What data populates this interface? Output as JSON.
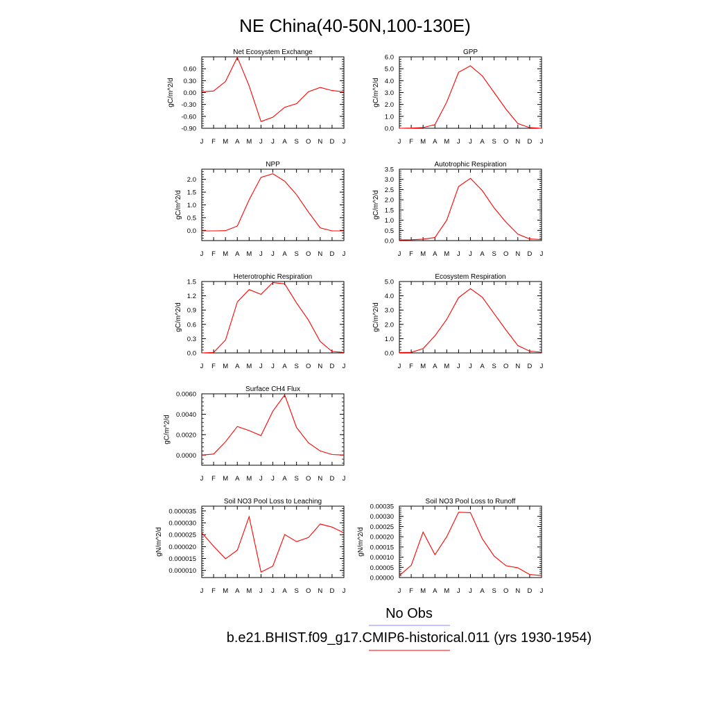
{
  "title": "NE China(40-50N,100-130E)",
  "months": [
    "J",
    "F",
    "M",
    "A",
    "M",
    "J",
    "J",
    "A",
    "S",
    "O",
    "N",
    "D",
    "J"
  ],
  "legend": {
    "entries": [
      {
        "name": "No Obs",
        "color": "#8a8aff"
      },
      {
        "name": "b.e21.BHIST.f09_g17.CMIP6-historical.011 (yrs 1930-1954)",
        "color": "#ff0000"
      }
    ]
  },
  "colors": {
    "series": "#ff0000"
  },
  "chart_data": [
    {
      "type": "line",
      "title": "Net Ecosystem Exchange",
      "ylabel": "gC/m^2/d",
      "ylim": [
        -0.9,
        0.9
      ],
      "yticks": [
        "-0.90",
        "-0.60",
        "-0.30",
        "0.00",
        "0.30",
        "0.60"
      ],
      "yticks_values": [
        -0.9,
        -0.6,
        -0.3,
        0.0,
        0.3,
        0.6
      ],
      "values": [
        0.02,
        0.04,
        0.28,
        0.89,
        0.17,
        -0.73,
        -0.62,
        -0.37,
        -0.28,
        0.02,
        0.13,
        0.05,
        0.02
      ]
    },
    {
      "type": "line",
      "title": "GPP",
      "ylabel": "gC/m^2/d",
      "ylim": [
        0,
        6
      ],
      "yticks": [
        "0.0",
        "1.0",
        "2.0",
        "3.0",
        "4.0",
        "5.0",
        "6.0"
      ],
      "yticks_values": [
        0,
        1,
        2,
        3,
        4,
        5,
        6
      ],
      "values": [
        0.0,
        0.02,
        0.06,
        0.3,
        2.2,
        4.7,
        5.25,
        4.4,
        3.0,
        1.6,
        0.4,
        0.05,
        0.0
      ]
    },
    {
      "type": "line",
      "title": "NPP",
      "ylabel": "gC/m^2/d",
      "ylim": [
        -0.4,
        2.4
      ],
      "yticks": [
        "0.0",
        "0.5",
        "1.0",
        "1.5",
        "2.0"
      ],
      "yticks_values": [
        0,
        0.5,
        1.0,
        1.5,
        2.0
      ],
      "values": [
        -0.02,
        -0.02,
        -0.01,
        0.17,
        1.2,
        2.08,
        2.22,
        1.93,
        1.4,
        0.72,
        0.1,
        -0.02,
        -0.02
      ]
    },
    {
      "type": "line",
      "title": "Autotrophic Respiration",
      "ylabel": "gC/m^2/d",
      "ylim": [
        0,
        3.5
      ],
      "yticks": [
        "0.0",
        "0.5",
        "1.0",
        "1.5",
        "2.0",
        "2.5",
        "3.0",
        "3.5"
      ],
      "yticks_values": [
        0,
        0.5,
        1.0,
        1.5,
        2.0,
        2.5,
        3.0,
        3.5
      ],
      "values": [
        0.03,
        0.04,
        0.07,
        0.15,
        1.0,
        2.65,
        3.05,
        2.45,
        1.6,
        0.9,
        0.32,
        0.08,
        0.05
      ]
    },
    {
      "type": "line",
      "title": "Heterotrophic Respiration",
      "ylabel": "gC/m^2/d",
      "ylim": [
        0,
        1.5
      ],
      "yticks": [
        "0.0",
        "0.3",
        "0.6",
        "0.9",
        "1.2",
        "1.5"
      ],
      "yticks_values": [
        0,
        0.3,
        0.6,
        0.9,
        1.2,
        1.5
      ],
      "values": [
        0.0,
        0.01,
        0.27,
        1.07,
        1.33,
        1.23,
        1.48,
        1.45,
        1.05,
        0.69,
        0.24,
        0.03,
        0.01
      ]
    },
    {
      "type": "line",
      "title": "Ecosystem Respiration",
      "ylabel": "gC/m^2/d",
      "ylim": [
        0,
        5
      ],
      "yticks": [
        "0.0",
        "1.0",
        "2.0",
        "3.0",
        "4.0",
        "5.0"
      ],
      "yticks_values": [
        0,
        1,
        2,
        3,
        4,
        5
      ],
      "values": [
        0.03,
        0.04,
        0.3,
        1.2,
        2.35,
        3.87,
        4.5,
        3.9,
        2.75,
        1.6,
        0.52,
        0.12,
        0.05
      ]
    },
    {
      "type": "line",
      "title": "Surface CH4 Flux",
      "ylabel": "gC/m^2/d",
      "ylim": [
        -0.001,
        0.006
      ],
      "yticks": [
        "0.0000",
        "0.0020",
        "0.0040",
        "0.0060"
      ],
      "yticks_values": [
        0,
        0.002,
        0.004,
        0.006
      ],
      "values": [
        0.0,
        0.0001,
        0.0013,
        0.0028,
        0.0024,
        0.0019,
        0.0043,
        0.0059,
        0.0027,
        0.0012,
        0.0004,
        5e-05,
        0.0
      ]
    },
    {
      "type": "line",
      "title": "Soil NO3 Pool Loss to Leaching",
      "ylabel": "gN/m^2/d",
      "ylim": [
        7e-06,
        3.7e-05
      ],
      "yticks": [
        "0.000010",
        "0.000015",
        "0.000020",
        "0.000025",
        "0.000030",
        "0.000035"
      ],
      "yticks_values": [
        1e-05,
        1.5e-05,
        2e-05,
        2.5e-05,
        3e-05,
        3.5e-05
      ],
      "values": [
        2.58e-05,
        2.02e-05,
        1.49e-05,
        1.85e-05,
        3.26e-05,
        9.3e-06,
        1.18e-05,
        2.51e-05,
        2.21e-05,
        2.38e-05,
        2.95e-05,
        2.82e-05,
        2.58e-05
      ]
    },
    {
      "type": "line",
      "title": "Soil NO3 Pool Loss to Runoff",
      "ylabel": "gN/m^2/d",
      "ylim": [
        0,
        0.00035
      ],
      "yticks": [
        "0.00000",
        "0.00005",
        "0.00010",
        "0.00015",
        "0.00020",
        "0.00025",
        "0.00030",
        "0.00035"
      ],
      "yticks_values": [
        0,
        5e-05,
        0.0001,
        0.00015,
        0.0002,
        0.00025,
        0.0003,
        0.00035
      ],
      "values": [
        1e-05,
        6e-05,
        0.000223,
        0.000112,
        0.0002,
        0.00032,
        0.000318,
        0.00019,
        0.000105,
        5.8e-05,
        4.8e-05,
        1.5e-05,
        1e-05
      ]
    }
  ]
}
